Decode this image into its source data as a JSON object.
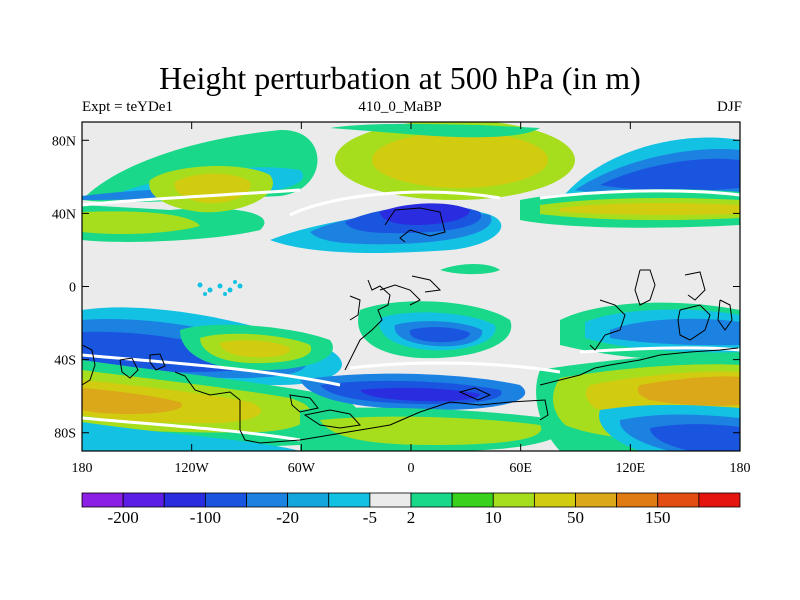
{
  "title": "Height perturbation at 500 hPa (in m)",
  "subtitle_left": "Expt = teYDe1",
  "subtitle_center": "410_0_MaBP",
  "subtitle_right": "DJF",
  "axes": {
    "y_ticks": [
      "80N",
      "40N",
      "0",
      "40S",
      "80S"
    ],
    "x_ticks": [
      "180",
      "120W",
      "60W",
      "0",
      "60E",
      "120E",
      "180"
    ]
  },
  "colorbar": {
    "colors": [
      "#8c1fe6",
      "#5a1ee6",
      "#2a2ce0",
      "#1a55e0",
      "#1c82e2",
      "#13a6dd",
      "#13c2e2",
      "#ebebeb",
      "#19d88a",
      "#3ad11c",
      "#a6de1d",
      "#d1cc10",
      "#dba81a",
      "#e07a13",
      "#e34d12",
      "#e6140f"
    ],
    "labels": [
      "-200",
      "-100",
      "-20",
      "-5",
      "2",
      "10",
      "50",
      "150"
    ],
    "label_boundary_index": [
      1,
      3,
      5,
      7,
      8,
      10,
      12,
      14
    ]
  },
  "colors": {
    "background": "#ebebeb",
    "coast": "#000000"
  }
}
